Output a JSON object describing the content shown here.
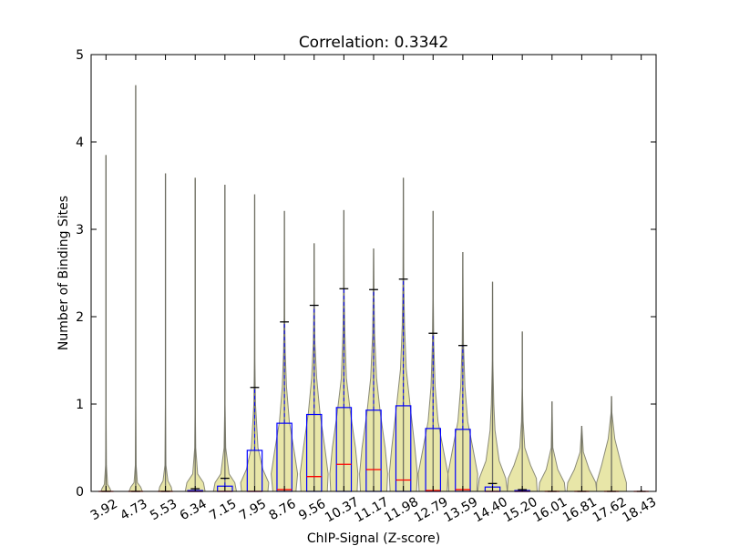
{
  "chart_data": {
    "type": "violin-box",
    "title": "Correlation: 0.3342",
    "xlabel": "ChIP-Signal (Z-score)",
    "ylabel": "Number of Binding Sites",
    "ylim": [
      0,
      5
    ],
    "yticks": [
      "0",
      "1",
      "2",
      "3",
      "4",
      "5"
    ],
    "categories": [
      "3.92",
      "4.73",
      "5.53",
      "6.34",
      "7.15",
      "7.95",
      "8.76",
      "9.56",
      "10.37",
      "11.17",
      "11.98",
      "12.79",
      "13.59",
      "14.40",
      "15.20",
      "16.01",
      "16.81",
      "17.62",
      "18.43"
    ],
    "violin_max": [
      3.85,
      4.65,
      3.64,
      3.59,
      3.51,
      3.4,
      3.21,
      2.84,
      3.22,
      2.78,
      3.59,
      3.21,
      2.74,
      2.4,
      1.83,
      1.03,
      0.75,
      1.09,
      0.02
    ],
    "violin_density": [
      [
        [
          0,
          6
        ],
        [
          0.03,
          5
        ],
        [
          0.08,
          2
        ],
        [
          0.3,
          0.5
        ],
        [
          1,
          0.05
        ],
        [
          2,
          0.02
        ],
        [
          3.85,
          0
        ]
      ],
      [
        [
          0,
          8
        ],
        [
          0.05,
          6
        ],
        [
          0.1,
          2
        ],
        [
          0.3,
          0.5
        ],
        [
          1,
          0.05
        ],
        [
          2,
          0.02
        ],
        [
          4.65,
          0
        ]
      ],
      [
        [
          0,
          8
        ],
        [
          0.05,
          7
        ],
        [
          0.12,
          3
        ],
        [
          0.3,
          0.6
        ],
        [
          1,
          0.06
        ],
        [
          2,
          0.02
        ],
        [
          3.64,
          0
        ]
      ],
      [
        [
          0,
          12
        ],
        [
          0.1,
          10
        ],
        [
          0.2,
          3
        ],
        [
          0.5,
          0.6
        ],
        [
          1,
          0.08
        ],
        [
          2,
          0.02
        ],
        [
          3.59,
          0
        ]
      ],
      [
        [
          0,
          14
        ],
        [
          0.1,
          12
        ],
        [
          0.2,
          5
        ],
        [
          0.5,
          1
        ],
        [
          1,
          0.2
        ],
        [
          2,
          0.05
        ],
        [
          3.51,
          0
        ]
      ],
      [
        [
          0,
          16
        ],
        [
          0.1,
          17
        ],
        [
          0.25,
          10
        ],
        [
          0.5,
          4
        ],
        [
          1,
          1
        ],
        [
          1.5,
          0.3
        ],
        [
          2,
          0.1
        ],
        [
          3.4,
          0
        ]
      ],
      [
        [
          0,
          14
        ],
        [
          0.2,
          16
        ],
        [
          0.45,
          12
        ],
        [
          0.8,
          6
        ],
        [
          1.2,
          2.5
        ],
        [
          1.6,
          1
        ],
        [
          2,
          0.3
        ],
        [
          3.21,
          0
        ]
      ],
      [
        [
          0,
          16
        ],
        [
          0.2,
          17
        ],
        [
          0.5,
          13
        ],
        [
          0.9,
          7
        ],
        [
          1.3,
          3
        ],
        [
          1.7,
          1
        ],
        [
          2.2,
          0.3
        ],
        [
          2.84,
          0
        ]
      ],
      [
        [
          0,
          16
        ],
        [
          0.2,
          17
        ],
        [
          0.5,
          14
        ],
        [
          0.9,
          8
        ],
        [
          1.3,
          3
        ],
        [
          1.8,
          1.2
        ],
        [
          2.3,
          0.4
        ],
        [
          3.22,
          0
        ]
      ],
      [
        [
          0,
          16
        ],
        [
          0.2,
          17
        ],
        [
          0.5,
          14
        ],
        [
          0.9,
          8
        ],
        [
          1.3,
          3.5
        ],
        [
          1.8,
          1.2
        ],
        [
          2.3,
          0.4
        ],
        [
          2.78,
          0
        ]
      ],
      [
        [
          0,
          16
        ],
        [
          0.2,
          17
        ],
        [
          0.5,
          14
        ],
        [
          1,
          8
        ],
        [
          1.4,
          3.5
        ],
        [
          1.9,
          1.4
        ],
        [
          2.4,
          0.5
        ],
        [
          3.59,
          0
        ]
      ],
      [
        [
          0,
          17
        ],
        [
          0.2,
          18
        ],
        [
          0.5,
          12
        ],
        [
          0.8,
          6
        ],
        [
          1.2,
          2.5
        ],
        [
          1.7,
          0.8
        ],
        [
          2.2,
          0.3
        ],
        [
          3.21,
          0
        ]
      ],
      [
        [
          0,
          17
        ],
        [
          0.2,
          18
        ],
        [
          0.5,
          12
        ],
        [
          0.8,
          6
        ],
        [
          1.2,
          2.5
        ],
        [
          1.7,
          0.8
        ],
        [
          2.2,
          0.3
        ],
        [
          2.74,
          0
        ]
      ],
      [
        [
          0,
          18
        ],
        [
          0.15,
          16
        ],
        [
          0.35,
          8
        ],
        [
          0.7,
          3
        ],
        [
          1,
          1.5
        ],
        [
          1.5,
          0.3
        ],
        [
          2.4,
          0
        ]
      ],
      [
        [
          0,
          18
        ],
        [
          0.15,
          17
        ],
        [
          0.3,
          10
        ],
        [
          0.5,
          3
        ],
        [
          0.8,
          1
        ],
        [
          1.2,
          0.2
        ],
        [
          1.83,
          0
        ]
      ],
      [
        [
          0,
          16
        ],
        [
          0.1,
          15
        ],
        [
          0.25,
          7
        ],
        [
          0.5,
          1
        ],
        [
          1.03,
          0
        ]
      ],
      [
        [
          0,
          18
        ],
        [
          0.1,
          17
        ],
        [
          0.25,
          9
        ],
        [
          0.45,
          2
        ],
        [
          0.75,
          0
        ]
      ],
      [
        [
          0,
          18
        ],
        [
          0.1,
          18
        ],
        [
          0.3,
          12
        ],
        [
          0.6,
          4
        ],
        [
          0.9,
          0.5
        ],
        [
          1.09,
          0
        ]
      ],
      [
        [
          0,
          1
        ],
        [
          0.02,
          0
        ]
      ]
    ],
    "boxes": [
      {
        "q1": 0,
        "median": 0,
        "q3": 0,
        "whisker_high": 0
      },
      {
        "q1": 0,
        "median": 0,
        "q3": 0,
        "whisker_high": 0
      },
      {
        "q1": 0,
        "median": 0,
        "q3": 0,
        "whisker_high": 0
      },
      {
        "q1": 0,
        "median": 0,
        "q3": 0.01,
        "whisker_high": 0.03
      },
      {
        "q1": 0,
        "median": 0,
        "q3": 0.06,
        "whisker_high": 0.15
      },
      {
        "q1": 0,
        "median": 0,
        "q3": 0.47,
        "whisker_high": 1.19
      },
      {
        "q1": 0,
        "median": 0.02,
        "q3": 0.78,
        "whisker_high": 1.94
      },
      {
        "q1": 0,
        "median": 0.17,
        "q3": 0.88,
        "whisker_high": 2.13
      },
      {
        "q1": 0,
        "median": 0.31,
        "q3": 0.96,
        "whisker_high": 2.32
      },
      {
        "q1": 0,
        "median": 0.25,
        "q3": 0.93,
        "whisker_high": 2.31
      },
      {
        "q1": 0,
        "median": 0.13,
        "q3": 0.98,
        "whisker_high": 2.43
      },
      {
        "q1": 0,
        "median": 0.01,
        "q3": 0.72,
        "whisker_high": 1.81
      },
      {
        "q1": 0,
        "median": 0.02,
        "q3": 0.71,
        "whisker_high": 1.67
      },
      {
        "q1": 0,
        "median": 0,
        "q3": 0.05,
        "whisker_high": 0.09
      },
      {
        "q1": 0,
        "median": 0,
        "q3": 0.01,
        "whisker_high": 0.02
      },
      {
        "q1": 0,
        "median": 0,
        "q3": 0,
        "whisker_high": 0
      },
      {
        "q1": 0,
        "median": 0,
        "q3": 0,
        "whisker_high": 0
      },
      {
        "q1": 0,
        "median": 0,
        "q3": 0,
        "whisker_high": 0
      },
      {
        "q1": 0,
        "median": 0,
        "q3": 0,
        "whisker_high": 0
      }
    ],
    "grid": false,
    "legend": "none",
    "colors": {
      "violin_fill": "#e8e6a8",
      "violin_edge": "#8a8a78",
      "box": "#0000ff",
      "median": "#ff0000",
      "whisker": "#0000ff",
      "cap": "#000000"
    }
  }
}
